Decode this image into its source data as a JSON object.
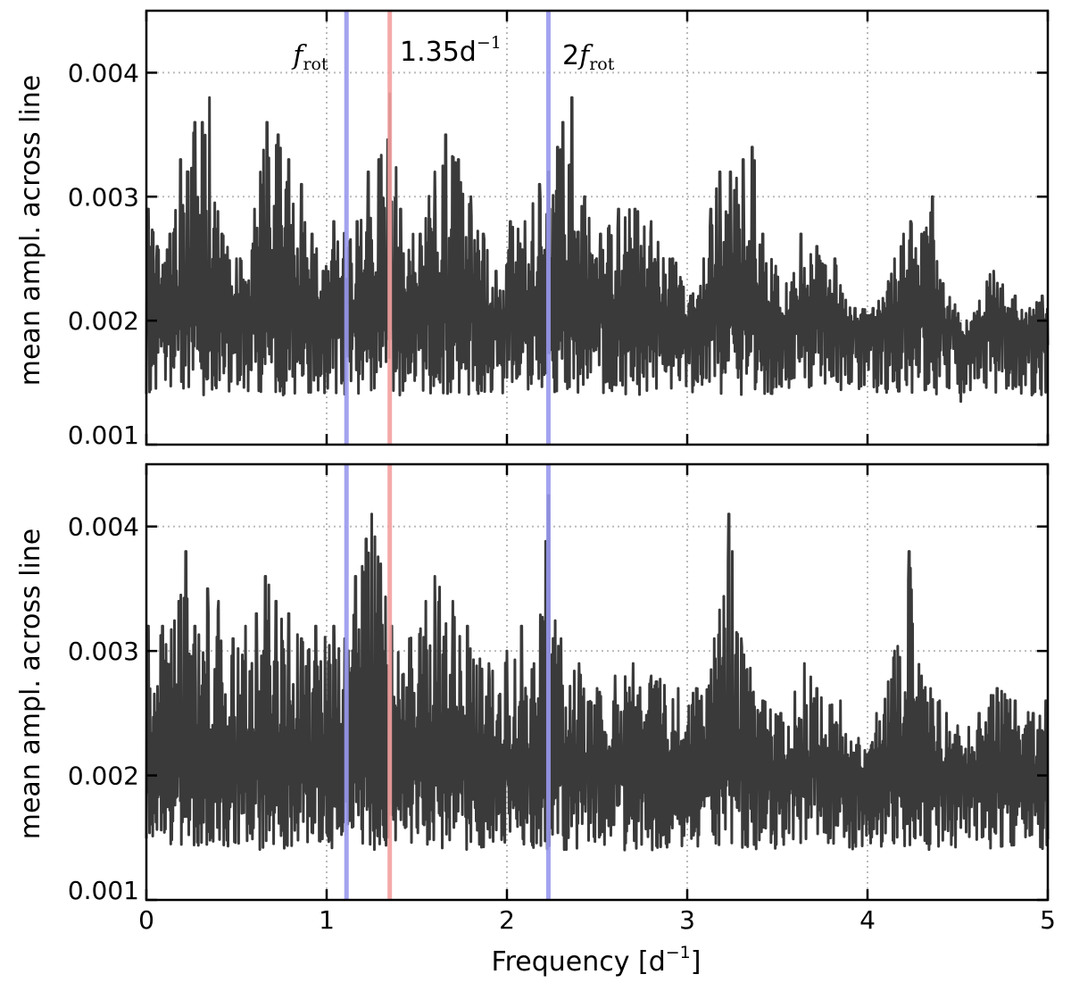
{
  "chart_data": [
    {
      "type": "line",
      "panel": "top",
      "xlim": [
        0,
        5
      ],
      "ylim": [
        0.001,
        0.0045
      ],
      "xticks": [
        0,
        1,
        2,
        3,
        4,
        5
      ],
      "yticks": [
        0.001,
        0.002,
        0.003,
        0.004
      ],
      "ytick_labels": [
        "0.001",
        "0.002",
        "0.003",
        "0.004"
      ],
      "ylabel": "mean ampl. across line",
      "grid": true,
      "series_color": "#3a3a3a",
      "peaks": [
        {
          "x": 0.01,
          "y": 0.0029
        },
        {
          "x": 0.06,
          "y": 0.0026
        },
        {
          "x": 0.13,
          "y": 0.0027
        },
        {
          "x": 0.19,
          "y": 0.0033
        },
        {
          "x": 0.23,
          "y": 0.0032
        },
        {
          "x": 0.27,
          "y": 0.0036
        },
        {
          "x": 0.31,
          "y": 0.0036
        },
        {
          "x": 0.35,
          "y": 0.0038
        },
        {
          "x": 0.42,
          "y": 0.0027
        },
        {
          "x": 0.5,
          "y": 0.0025
        },
        {
          "x": 0.6,
          "y": 0.0029
        },
        {
          "x": 0.67,
          "y": 0.0036
        },
        {
          "x": 0.73,
          "y": 0.0035
        },
        {
          "x": 0.79,
          "y": 0.0033
        },
        {
          "x": 0.86,
          "y": 0.0031
        },
        {
          "x": 0.92,
          "y": 0.0027
        },
        {
          "x": 0.98,
          "y": 0.0024
        },
        {
          "x": 1.04,
          "y": 0.0028
        },
        {
          "x": 1.17,
          "y": 0.0028
        },
        {
          "x": 1.23,
          "y": 0.0032
        },
        {
          "x": 1.29,
          "y": 0.0033
        },
        {
          "x": 1.35,
          "y": 0.00383
        },
        {
          "x": 1.41,
          "y": 0.0029
        },
        {
          "x": 1.52,
          "y": 0.0027
        },
        {
          "x": 1.6,
          "y": 0.0032
        },
        {
          "x": 1.66,
          "y": 0.0035
        },
        {
          "x": 1.73,
          "y": 0.0033
        },
        {
          "x": 1.8,
          "y": 0.003
        },
        {
          "x": 1.87,
          "y": 0.0027
        },
        {
          "x": 1.94,
          "y": 0.0024
        },
        {
          "x": 2.02,
          "y": 0.0028
        },
        {
          "x": 2.1,
          "y": 0.0028
        },
        {
          "x": 2.18,
          "y": 0.0031
        },
        {
          "x": 2.23,
          "y": 0.0032
        },
        {
          "x": 2.28,
          "y": 0.0034
        },
        {
          "x": 2.31,
          "y": 0.0036
        },
        {
          "x": 2.36,
          "y": 0.0038
        },
        {
          "x": 2.43,
          "y": 0.003
        },
        {
          "x": 2.52,
          "y": 0.0027
        },
        {
          "x": 2.62,
          "y": 0.0029
        },
        {
          "x": 2.71,
          "y": 0.0029
        },
        {
          "x": 2.8,
          "y": 0.0028
        },
        {
          "x": 2.92,
          "y": 0.0025
        },
        {
          "x": 3.02,
          "y": 0.0022
        },
        {
          "x": 3.13,
          "y": 0.0029
        },
        {
          "x": 3.18,
          "y": 0.0032
        },
        {
          "x": 3.24,
          "y": 0.0032
        },
        {
          "x": 3.31,
          "y": 0.0033
        },
        {
          "x": 3.36,
          "y": 0.0034
        },
        {
          "x": 3.42,
          "y": 0.0027
        },
        {
          "x": 3.55,
          "y": 0.0023
        },
        {
          "x": 3.63,
          "y": 0.0027
        },
        {
          "x": 3.72,
          "y": 0.0026
        },
        {
          "x": 3.82,
          "y": 0.0025
        },
        {
          "x": 3.93,
          "y": 0.0021
        },
        {
          "x": 4.03,
          "y": 0.0021
        },
        {
          "x": 4.15,
          "y": 0.0025
        },
        {
          "x": 4.2,
          "y": 0.0027
        },
        {
          "x": 4.24,
          "y": 0.0028
        },
        {
          "x": 4.3,
          "y": 0.0027
        },
        {
          "x": 4.36,
          "y": 0.003
        },
        {
          "x": 4.42,
          "y": 0.0023
        },
        {
          "x": 4.55,
          "y": 0.002
        },
        {
          "x": 4.7,
          "y": 0.0024
        },
        {
          "x": 4.82,
          "y": 0.0022
        },
        {
          "x": 4.9,
          "y": 0.0021
        },
        {
          "x": 4.97,
          "y": 0.0022
        }
      ],
      "vlines": [
        {
          "x": 1.11,
          "color": "#9999ee",
          "label_parts": [
            "f",
            "rot"
          ]
        },
        {
          "x": 1.35,
          "color": "#f4a0a0",
          "label_parts": [
            "1.35d",
            "−1"
          ]
        },
        {
          "x": 2.23,
          "color": "#9999ee",
          "label_parts": [
            "2",
            "f",
            "rot"
          ]
        }
      ]
    },
    {
      "type": "line",
      "panel": "bottom",
      "xlim": [
        0,
        5
      ],
      "ylim": [
        0.001,
        0.0045
      ],
      "xticks": [
        0,
        1,
        2,
        3,
        4,
        5
      ],
      "xtick_labels": [
        "0",
        "1",
        "2",
        "3",
        "4",
        "5"
      ],
      "yticks": [
        0.001,
        0.002,
        0.003,
        0.004
      ],
      "ytick_labels": [
        "0.001",
        "0.002",
        "0.003",
        "0.004"
      ],
      "xlabel_parts": [
        "Frequency [d",
        "−1",
        "]"
      ],
      "ylabel": "mean ampl. across line",
      "grid": true,
      "series_color": "#3a3a3a",
      "peaks": [
        {
          "x": 0.01,
          "y": 0.0032
        },
        {
          "x": 0.09,
          "y": 0.0032
        },
        {
          "x": 0.18,
          "y": 0.0034
        },
        {
          "x": 0.22,
          "y": 0.0038
        },
        {
          "x": 0.27,
          "y": 0.0032
        },
        {
          "x": 0.34,
          "y": 0.0035
        },
        {
          "x": 0.4,
          "y": 0.0034
        },
        {
          "x": 0.48,
          "y": 0.0031
        },
        {
          "x": 0.55,
          "y": 0.0032
        },
        {
          "x": 0.61,
          "y": 0.0033
        },
        {
          "x": 0.66,
          "y": 0.0036
        },
        {
          "x": 0.72,
          "y": 0.0034
        },
        {
          "x": 0.79,
          "y": 0.0033
        },
        {
          "x": 0.86,
          "y": 0.0031
        },
        {
          "x": 0.94,
          "y": 0.0032
        },
        {
          "x": 1.04,
          "y": 0.0032
        },
        {
          "x": 1.1,
          "y": 0.0031
        },
        {
          "x": 1.16,
          "y": 0.0036
        },
        {
          "x": 1.22,
          "y": 0.0039
        },
        {
          "x": 1.25,
          "y": 0.0041
        },
        {
          "x": 1.3,
          "y": 0.0037
        },
        {
          "x": 1.36,
          "y": 0.0032
        },
        {
          "x": 1.46,
          "y": 0.0031
        },
        {
          "x": 1.55,
          "y": 0.0034
        },
        {
          "x": 1.6,
          "y": 0.0036
        },
        {
          "x": 1.7,
          "y": 0.0034
        },
        {
          "x": 1.78,
          "y": 0.0032
        },
        {
          "x": 1.9,
          "y": 0.0029
        },
        {
          "x": 2.0,
          "y": 0.003
        },
        {
          "x": 2.08,
          "y": 0.0032
        },
        {
          "x": 2.15,
          "y": 0.0029
        },
        {
          "x": 2.23,
          "y": 0.00425
        },
        {
          "x": 2.3,
          "y": 0.0031
        },
        {
          "x": 2.4,
          "y": 0.0029
        },
        {
          "x": 2.5,
          "y": 0.0027
        },
        {
          "x": 2.6,
          "y": 0.0028
        },
        {
          "x": 2.7,
          "y": 0.0029
        },
        {
          "x": 2.8,
          "y": 0.0028
        },
        {
          "x": 2.95,
          "y": 0.0027
        },
        {
          "x": 3.05,
          "y": 0.0027
        },
        {
          "x": 3.15,
          "y": 0.0031
        },
        {
          "x": 3.23,
          "y": 0.0041
        },
        {
          "x": 3.3,
          "y": 0.0031
        },
        {
          "x": 3.42,
          "y": 0.0026
        },
        {
          "x": 3.52,
          "y": 0.0025
        },
        {
          "x": 3.65,
          "y": 0.0029
        },
        {
          "x": 3.72,
          "y": 0.0027
        },
        {
          "x": 3.85,
          "y": 0.0026
        },
        {
          "x": 3.95,
          "y": 0.0023
        },
        {
          "x": 4.05,
          "y": 0.0025
        },
        {
          "x": 4.15,
          "y": 0.003
        },
        {
          "x": 4.23,
          "y": 0.0038
        },
        {
          "x": 4.3,
          "y": 0.0028
        },
        {
          "x": 4.4,
          "y": 0.0026
        },
        {
          "x": 4.5,
          "y": 0.0024
        },
        {
          "x": 4.62,
          "y": 0.0025
        },
        {
          "x": 4.72,
          "y": 0.0027
        },
        {
          "x": 4.82,
          "y": 0.0026
        },
        {
          "x": 4.92,
          "y": 0.0025
        },
        {
          "x": 4.99,
          "y": 0.0026
        }
      ],
      "vlines": [
        {
          "x": 1.11,
          "color": "#9999ee"
        },
        {
          "x": 1.35,
          "color": "#f4a0a0"
        },
        {
          "x": 2.23,
          "color": "#9999ee"
        }
      ]
    }
  ]
}
